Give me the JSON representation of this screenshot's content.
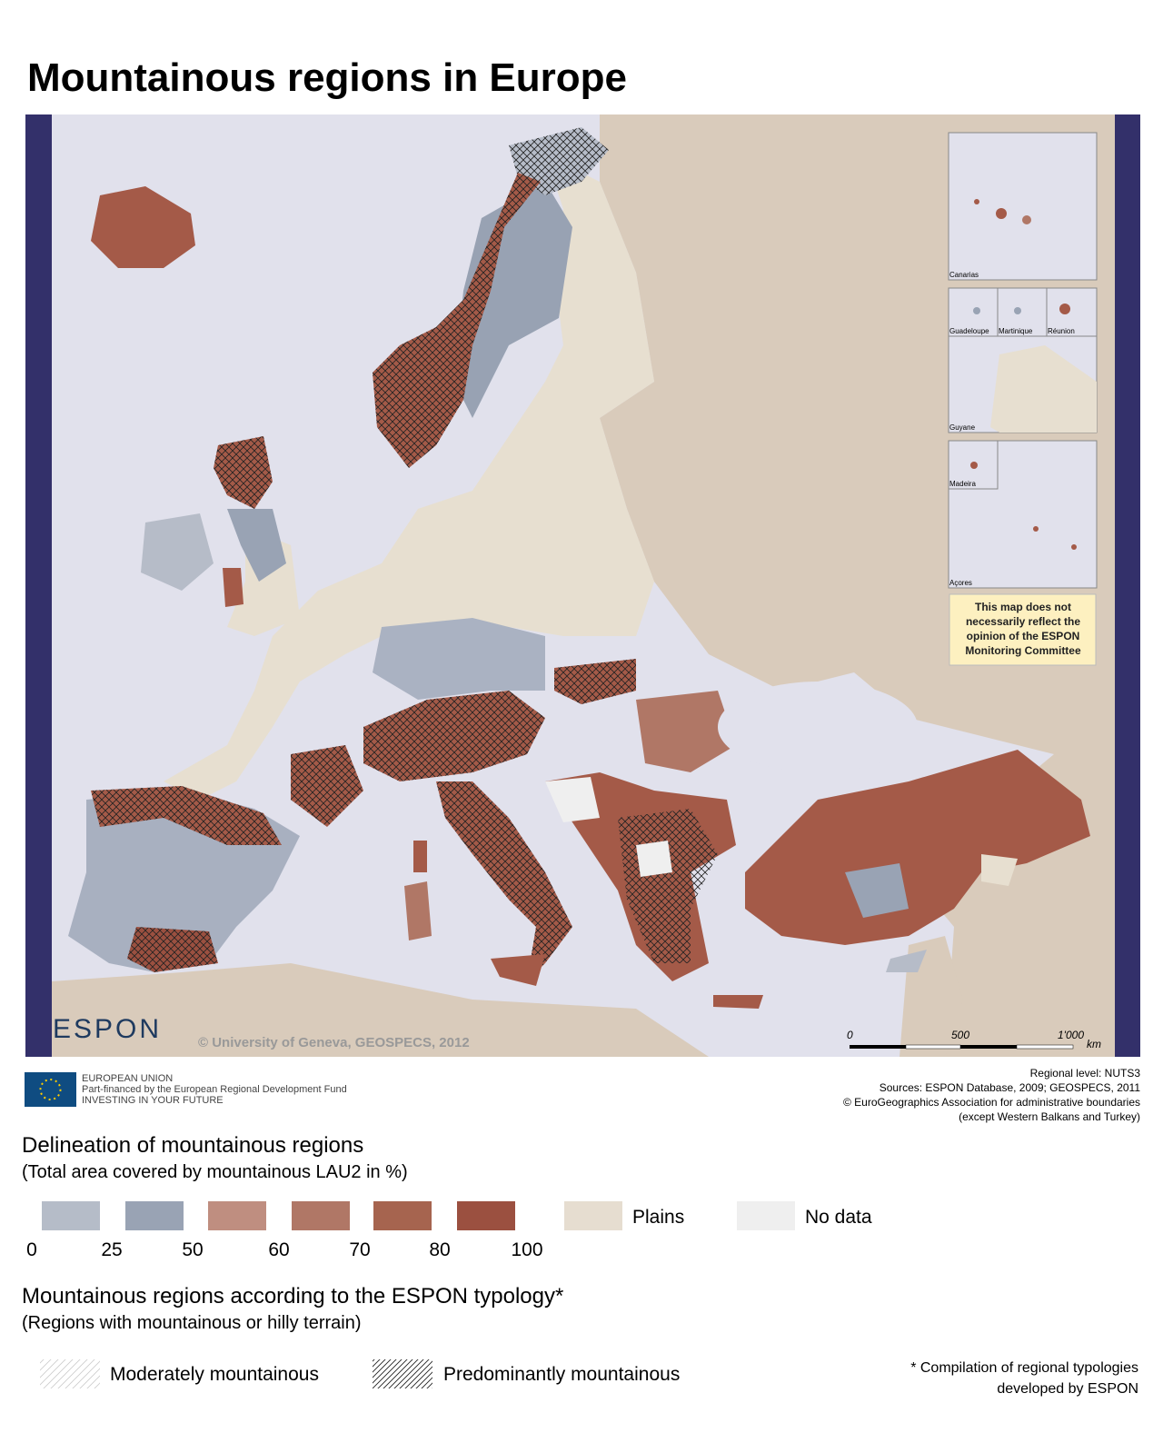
{
  "title": "Mountainous regions in Europe",
  "map": {
    "copyright": "© University of Geneva, GEOSPECS, 2012",
    "logo": "ESPON",
    "scale": {
      "labels": [
        "0",
        "500",
        "1'000"
      ],
      "unit": "km"
    },
    "insets": [
      "Canarias",
      "Guadeloupe",
      "Martinique",
      "Réunion",
      "Guyane",
      "Madeira",
      "Açores"
    ],
    "disclaimer": [
      "This map does not",
      "necessarily reflect the",
      "opinion of the ESPON",
      "Monitoring Committee"
    ]
  },
  "eu": [
    "EUROPEAN UNION",
    "Part-financed by the European Regional Development Fund",
    "INVESTING IN YOUR FUTURE"
  ],
  "sources": [
    "Regional level: NUTS3",
    "Sources: ESPON Database, 2009; GEOSPECS, 2011",
    "© EuroGeographics Association for administrative boundaries",
    "(except Western Balkans and Turkey)"
  ],
  "legend_share": {
    "title": "Delineation of mountainous regions",
    "subtitle": "(Total area covered by mountainous LAU2 in %)",
    "breaks": [
      0,
      25,
      50,
      60,
      70,
      80,
      100
    ],
    "plains": "Plains",
    "no_data": "No data"
  },
  "legend_typology": {
    "title": "Mountainous regions according to the ESPON typology*",
    "subtitle": "(Regions with mountainous or hilly terrain)",
    "items": [
      "Moderately mountainous",
      "Predominantly mountainous"
    ]
  },
  "footnote": [
    "* Compilation of regional typologies",
    "developed by ESPON"
  ]
}
